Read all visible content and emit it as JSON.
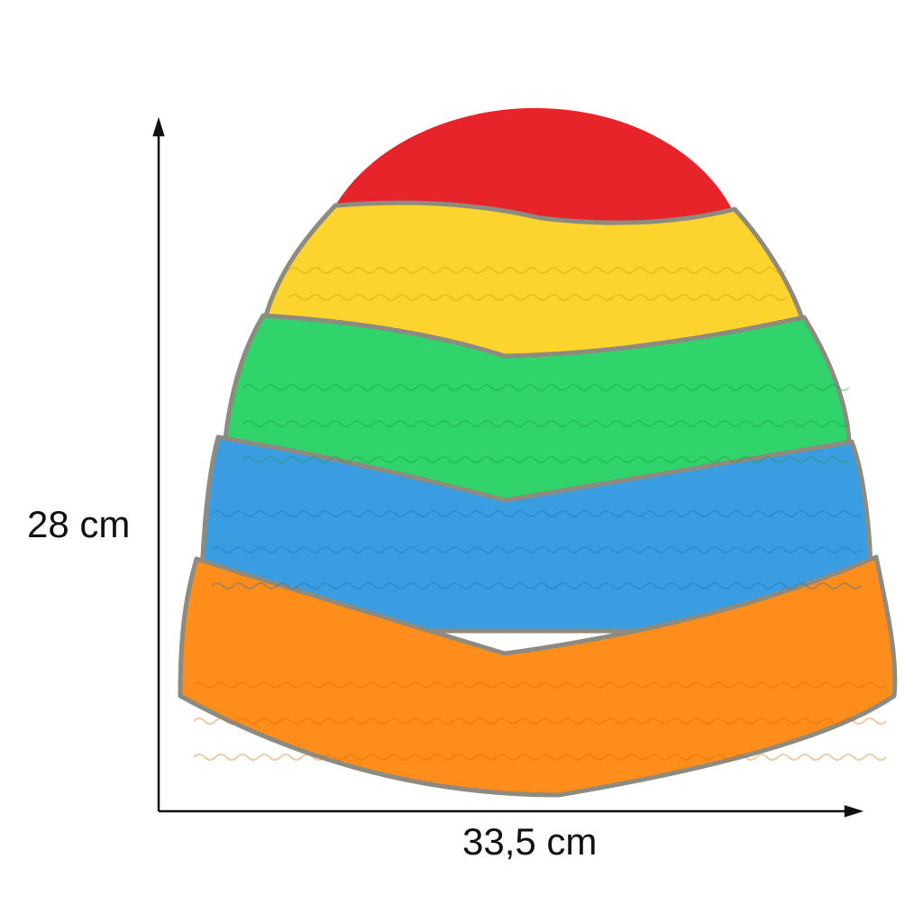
{
  "dimensions": {
    "height_label": "28 cm",
    "width_label": "33,5 cm"
  },
  "product": {
    "segments": [
      {
        "name": "red",
        "color": "#e8242b"
      },
      {
        "name": "yellow",
        "color": "#fdd32e"
      },
      {
        "name": "green",
        "color": "#30d46b"
      },
      {
        "name": "blue",
        "color": "#3a9de2"
      },
      {
        "name": "orange",
        "color": "#ff8d1c"
      }
    ],
    "rim_color": "#8d8b80"
  }
}
